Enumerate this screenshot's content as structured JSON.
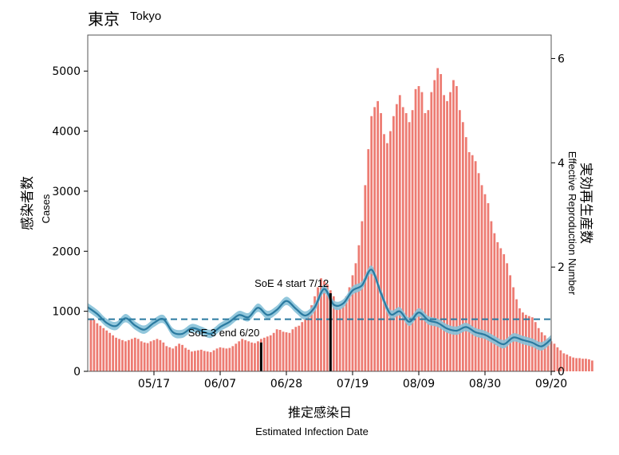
{
  "title": {
    "city_jp": "東京",
    "city_en": "Tokyo"
  },
  "axes": {
    "left_label_jp": "感染者数",
    "left_label_en": "Cases",
    "right_label_jp": "実効再生産数",
    "right_label_en": "Effective Reproduction Number",
    "x_label_jp": "推定感染日",
    "x_label_en": "Estimated Infection Date"
  },
  "colors": {
    "bars": "#ed7b72",
    "rt_line": "#2a7aa0",
    "rt_band": "#86c1d8",
    "threshold": "#2a7aa0",
    "event_line": "#000000"
  },
  "chart_data": {
    "type": "bar",
    "x_range": [
      "2021-04-26",
      "2021-09-20"
    ],
    "xticks": [
      "05/17",
      "06/07",
      "06/28",
      "07/19",
      "08/09",
      "08/30",
      "09/20"
    ],
    "y_left": {
      "range": [
        0,
        5600
      ],
      "ticks": [
        0,
        1000,
        2000,
        3000,
        4000,
        5000
      ]
    },
    "y_right": {
      "range": [
        0,
        6.45
      ],
      "ticks": [
        0,
        2,
        4,
        6
      ]
    },
    "grid": false,
    "legend": "none",
    "cases": {
      "start_date": "2021-04-27",
      "values": [
        880,
        860,
        800,
        760,
        720,
        680,
        640,
        600,
        560,
        540,
        520,
        500,
        520,
        540,
        560,
        540,
        500,
        480,
        470,
        500,
        520,
        540,
        520,
        480,
        420,
        400,
        380,
        420,
        460,
        440,
        390,
        360,
        330,
        340,
        350,
        360,
        340,
        330,
        320,
        350,
        380,
        400,
        390,
        380,
        390,
        420,
        460,
        500,
        540,
        520,
        500,
        480,
        470,
        500,
        540,
        560,
        580,
        600,
        640,
        700,
        690,
        660,
        650,
        640,
        700,
        740,
        760,
        820,
        880,
        950,
        1100,
        1250,
        1400,
        1550,
        1500,
        1450,
        1350,
        1250,
        1100,
        1050,
        1100,
        1250,
        1400,
        1600,
        1800,
        2100,
        2500,
        3100,
        3700,
        4250,
        4400,
        4500,
        4300,
        3950,
        3800,
        4000,
        4250,
        4450,
        4600,
        4400,
        4300,
        4150,
        4350,
        4700,
        4750,
        4650,
        4300,
        4350,
        4650,
        4850,
        5050,
        4950,
        4600,
        4500,
        4650,
        4850,
        4750,
        4350,
        4150,
        3900,
        3650,
        3600,
        3500,
        3300,
        3100,
        2950,
        2800,
        2500,
        2300,
        2150,
        2050,
        1950,
        1800,
        1600,
        1400,
        1200,
        1050,
        980,
        940,
        920,
        900,
        820,
        720,
        650,
        600,
        550,
        500,
        460,
        400,
        350,
        300,
        280,
        250,
        230,
        220,
        220,
        210,
        210,
        200,
        180
      ]
    },
    "rt": {
      "series_dates": [
        "2021-04-26",
        "2021-04-29",
        "2021-05-02",
        "2021-05-05",
        "2021-05-08",
        "2021-05-11",
        "2021-05-14",
        "2021-05-17",
        "2021-05-20",
        "2021-05-23",
        "2021-05-26",
        "2021-05-29",
        "2021-06-01",
        "2021-06-04",
        "2021-06-07",
        "2021-06-10",
        "2021-06-13",
        "2021-06-16",
        "2021-06-19",
        "2021-06-22",
        "2021-06-25",
        "2021-06-28",
        "2021-07-01",
        "2021-07-04",
        "2021-07-07",
        "2021-07-10",
        "2021-07-13",
        "2021-07-16",
        "2021-07-19",
        "2021-07-22",
        "2021-07-25",
        "2021-07-28",
        "2021-07-31",
        "2021-08-03",
        "2021-08-06",
        "2021-08-09",
        "2021-08-12",
        "2021-08-15",
        "2021-08-18",
        "2021-08-21",
        "2021-08-24",
        "2021-08-27",
        "2021-08-30",
        "2021-09-02",
        "2021-09-05",
        "2021-09-08",
        "2021-09-11",
        "2021-09-14",
        "2021-09-17",
        "2021-09-20"
      ],
      "values": [
        1.23,
        1.1,
        0.93,
        0.87,
        1.02,
        0.88,
        0.8,
        0.93,
        1.0,
        0.75,
        0.72,
        0.83,
        0.78,
        0.72,
        0.85,
        0.95,
        1.08,
        1.04,
        1.22,
        1.08,
        1.18,
        1.35,
        1.2,
        1.07,
        1.23,
        1.58,
        1.28,
        1.3,
        1.55,
        1.65,
        1.95,
        1.5,
        1.1,
        1.15,
        0.95,
        1.13,
        0.98,
        0.93,
        0.82,
        0.78,
        0.85,
        0.75,
        0.7,
        0.6,
        0.52,
        0.65,
        0.6,
        0.55,
        0.48,
        0.62
      ],
      "band": 0.08,
      "threshold": 1.0
    },
    "annotations": [
      {
        "text": "SoE 3 end 6/20",
        "date": "2021-06-20",
        "y_cases": 480
      },
      {
        "text": "SoE 4 start 7/12",
        "date": "2021-07-12",
        "y_cases": 1300
      }
    ]
  }
}
